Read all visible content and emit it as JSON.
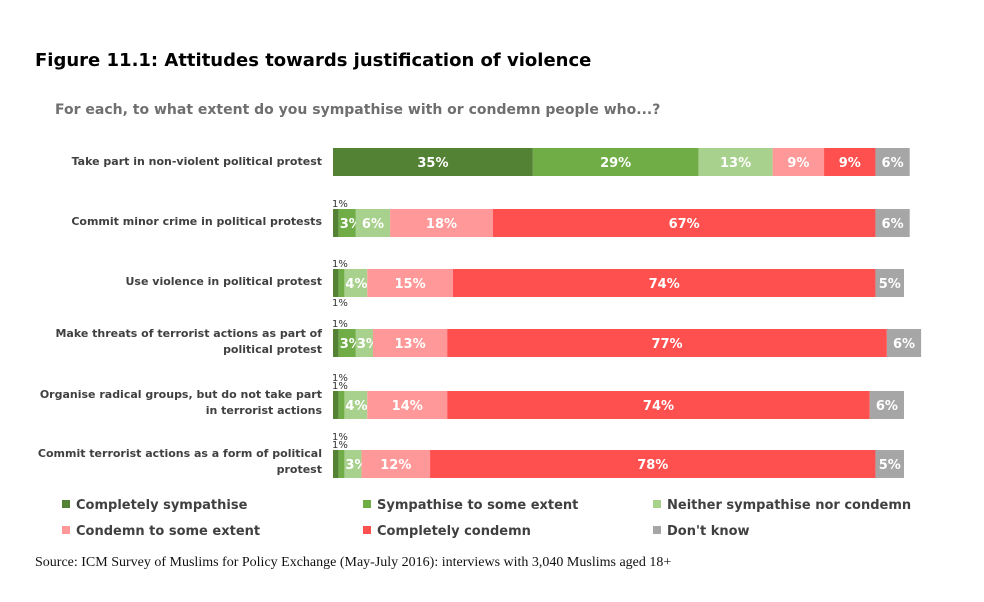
{
  "figure_title": "Figure 11.1: Attitudes towards justification of violence",
  "source": "Source: ICM Survey of Muslims for Policy Exchange (May-July 2016): interviews with 3,040 Muslims aged 18+",
  "chart_data": {
    "type": "bar",
    "orientation": "horizontal",
    "stacked": true,
    "title": "For each, to what extent do you sympathise with or condemn people who...?",
    "categories": [
      "Take part in non-violent political protest",
      "Commit minor crime in political protests",
      "Use violence in political protest",
      "Make threats of terrorist actions as part of political protest",
      "Organise radical groups, but do not take part in terrorist actions",
      "Commit terrorist actions as a form of political protest"
    ],
    "series": [
      {
        "name": "Completely sympathise",
        "color": "#548235",
        "values": [
          35,
          1,
          1,
          1,
          1,
          1
        ]
      },
      {
        "name": "Sympathise to some extent",
        "color": "#70ad47",
        "values": [
          29,
          3,
          1,
          3,
          1,
          1
        ]
      },
      {
        "name": "Neither sympathise nor condemn",
        "color": "#a9d18e",
        "values": [
          13,
          6,
          4,
          3,
          4,
          3
        ]
      },
      {
        "name": "Condemn to some extent",
        "color": "#ff9999",
        "values": [
          9,
          18,
          15,
          13,
          14,
          12
        ]
      },
      {
        "name": "Completely condemn",
        "color": "#ff5050",
        "values": [
          9,
          67,
          74,
          77,
          74,
          78
        ]
      },
      {
        "name": "Don't know",
        "color": "#a6a6a6",
        "values": [
          6,
          6,
          5,
          6,
          6,
          5
        ]
      }
    ],
    "data_labels": [
      [
        "35%",
        "29%",
        "13%",
        "9%",
        "9%",
        "6%"
      ],
      [
        "1%",
        "3%",
        "6%",
        "18%",
        "67%",
        "6%"
      ],
      [
        "1%",
        "1%",
        "4%",
        "15%",
        "74%",
        "5%"
      ],
      [
        "1%",
        "3%",
        "3%",
        "13%",
        "77%",
        "6%"
      ],
      [
        "1%",
        "1%",
        "4%",
        "14%",
        "74%",
        "6%"
      ],
      [
        "1%",
        "1%",
        "3%",
        "12%",
        "78%",
        "5%"
      ]
    ],
    "label_colors": [
      "#ffffff",
      "#ffffff",
      "#ffffff",
      "#ffffff",
      "#ffffff",
      "#ffffff"
    ],
    "legend_position": "bottom",
    "xlim": [
      0,
      100
    ]
  }
}
